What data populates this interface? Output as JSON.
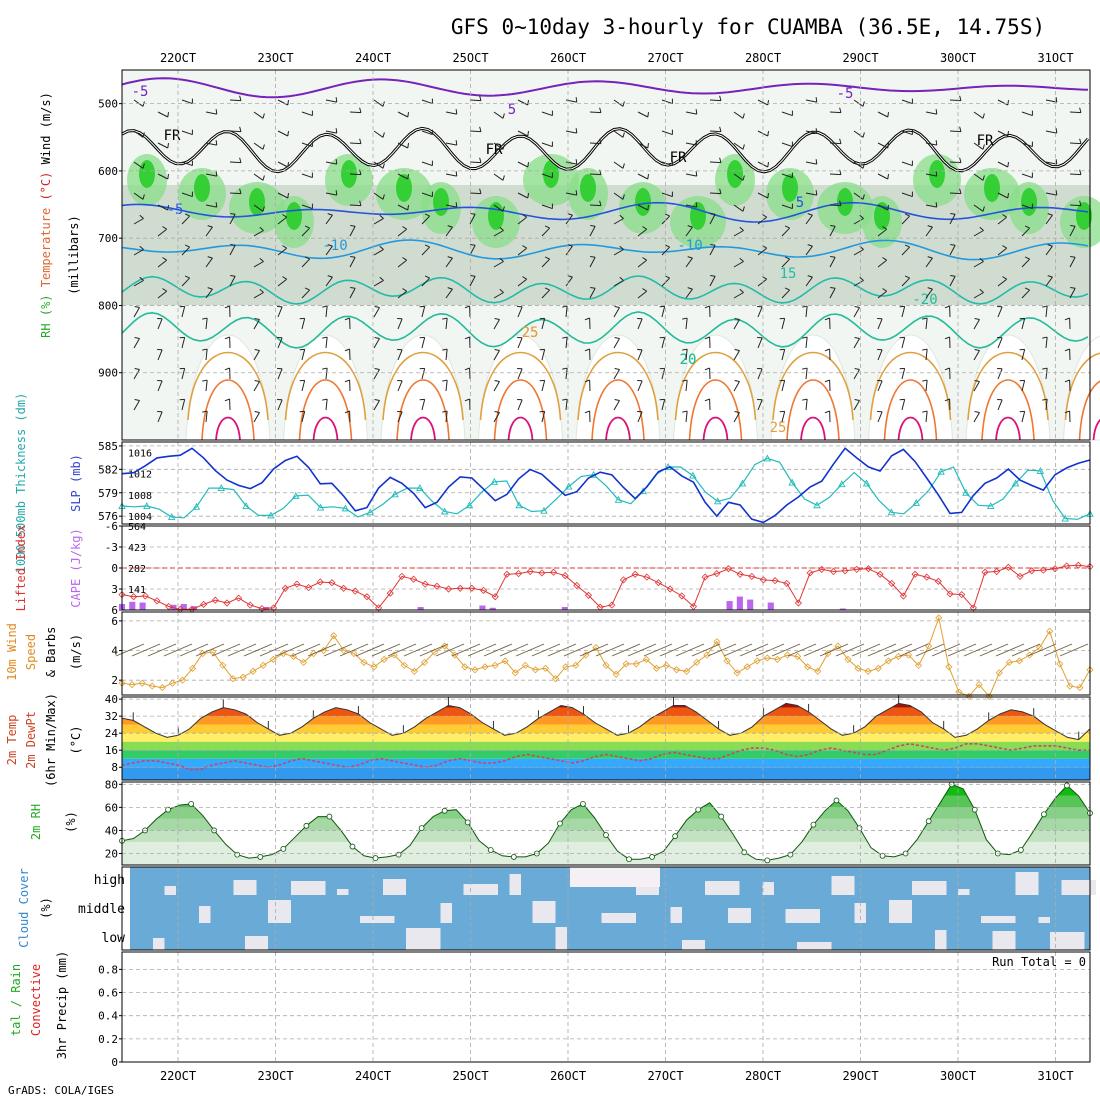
{
  "title": "GFS 0~10day 3-hourly for CUAMBA (36.5E, 14.75S)",
  "footer": "GrADS: COLA/IGES",
  "date_ticks": [
    "22OCT",
    "23OCT",
    "24OCT",
    "25OCT",
    "26OCT",
    "27OCT",
    "28OCT",
    "29OCT",
    "30OCT",
    "31OCT"
  ],
  "colors": {
    "frame": "#000000",
    "grid": "#aaaaaa",
    "rh_green": "#22cc22",
    "thick_cyan": "#22bbbb",
    "slp_blue": "#1133cc",
    "lifted_red": "#e03333",
    "cape_purple": "#bb66ee",
    "wind_orange": "#e0a030",
    "rh2m_green": "#11aa11",
    "cloud_blue": "#6aaad6"
  },
  "chart_data": [
    {
      "type": "contour",
      "panel": "upper-air",
      "ylabel_parts": [
        "RH (%)",
        "Temperature",
        "(°C)",
        "Wind",
        "(m/s)"
      ],
      "ylabel2": "(millibars)",
      "y_ticks": [
        "500",
        "600",
        "700",
        "800",
        "900"
      ],
      "y_values": [
        500,
        600,
        700,
        800,
        900
      ],
      "ylim": [
        1000,
        450
      ],
      "isotherm_labels": [
        "-5",
        "5",
        "-5",
        "FR",
        "FR",
        "FR",
        "FR",
        "5",
        "-5",
        "-10",
        "-10",
        "15",
        "-20",
        "20",
        "25",
        "25",
        "20",
        "25"
      ],
      "isotherm_levels": [
        -5,
        0,
        5,
        10,
        15,
        20,
        25,
        30
      ]
    },
    {
      "type": "line",
      "panel": "thickness-slp",
      "ylabel_left": "1000-500mb Thickness (dm)",
      "ylabel_right": "SLP (mb)",
      "y_left_ticks": [
        "576",
        "579",
        "582",
        "585"
      ],
      "y_right_ticks": [
        "1004",
        "1008",
        "1012",
        "1016"
      ],
      "y_left_lim": [
        575,
        585.5
      ],
      "y_right_lim": [
        1002.5,
        1018
      ],
      "series": [
        {
          "name": "1000-500mb Thickness (dm)",
          "axis": "left",
          "values": [
            577.3,
            577.2,
            577.3,
            576.9,
            575.9,
            575.8,
            577.2,
            579.6,
            579.6,
            579.4,
            577.3,
            576.1,
            576.1,
            577.0,
            578.6,
            578.7,
            577.1,
            577.2,
            577.0,
            575.9,
            576.5,
            577.5,
            578.8,
            579.6,
            579.6,
            577.9,
            576.6,
            576.3,
            577.4,
            579.1,
            580.4,
            580.5,
            577.4,
            576.6,
            576.7,
            578.2,
            579.8,
            581.1,
            581.3,
            579.9,
            578.1,
            577.6,
            579.2,
            581.3,
            582.3,
            582.3,
            581.2,
            579.1,
            577.9,
            578.3,
            580.2,
            582.6,
            583.4,
            582.9,
            580.3,
            578.2,
            577.4,
            578.4,
            580.1,
            581.6,
            580.2,
            578.0,
            576.5,
            576.3,
            577.7,
            579.3,
            581.7,
            582.3,
            579.0,
            577.4,
            577.3,
            578.2,
            580.2,
            581.9,
            581.8,
            578.0,
            575.7,
            575.6,
            576.3
          ]
        },
        {
          "name": "SLP (mb)",
          "axis": "right",
          "values": [
            1012.0,
            1012.2,
            1013.5,
            1015.0,
            1015.3,
            1015.5,
            1016.8,
            1015.0,
            1012.6,
            1010.8,
            1009.8,
            1009.2,
            1010.3,
            1012.9,
            1014.5,
            1015.3,
            1013.2,
            1010.1,
            1010.2,
            1007.8,
            1005.0,
            1005.6,
            1009.3,
            1011.3,
            1010.2,
            1008.3,
            1005.6,
            1006.6,
            1009.5,
            1011.4,
            1011.2,
            1009.1,
            1006.9,
            1008.1,
            1011.0,
            1012.8,
            1011.9,
            1009.9,
            1007.9,
            1008.6,
            1011.2,
            1012.3,
            1011.8,
            1009.4,
            1007.3,
            1009.5,
            1012.4,
            1013.3,
            1011.6,
            1010.4,
            1006.6,
            1004.0,
            1006.6,
            1006.1,
            1003.4,
            1002.8,
            1004.1,
            1006.1,
            1007.6,
            1009.5,
            1010.6,
            1013.8,
            1016.8,
            1015.0,
            1013.3,
            1012.5,
            1015.4,
            1016.6,
            1014.3,
            1011.2,
            1008.0,
            1004.5,
            1004.7,
            1007.9,
            1010.2,
            1011.2,
            1012.9,
            1010.8,
            1009.8,
            1008.9,
            1011.8,
            1013.1,
            1014.0,
            1014.6
          ]
        }
      ]
    },
    {
      "type": "bar-line",
      "panel": "lifted-cape",
      "ylabel_left": "Lifted Index",
      "ylabel_right": "CAPE (J/kg)",
      "y_left_ticks": [
        "-6",
        "-3",
        "0",
        "3",
        "6"
      ],
      "y_right_ticks": [
        "141",
        "282",
        "423",
        "564"
      ],
      "y_left_lim": [
        6,
        -6
      ],
      "y_right_lim": [
        0,
        564
      ],
      "series": [
        {
          "name": "Lifted Index",
          "values": [
            3.8,
            4.1,
            4.0,
            4.7,
            5.5,
            5.9,
            5.9,
            5.2,
            4.6,
            5.0,
            4.3,
            5.3,
            5.8,
            5.7,
            2.9,
            2.3,
            2.8,
            2.0,
            2.1,
            2.9,
            3.3,
            4.1,
            5.7,
            3.6,
            1.2,
            1.6,
            2.3,
            2.6,
            3.0,
            2.9,
            2.9,
            3.2,
            4.1,
            0.9,
            0.8,
            0.5,
            0.7,
            0.6,
            1.1,
            2.5,
            3.9,
            5.6,
            5.3,
            1.7,
            0.9,
            1.3,
            2.1,
            3.0,
            4.0,
            5.5,
            1.3,
            0.8,
            0.1,
            0.9,
            1.2,
            1.7,
            1.8,
            2.2,
            5.0,
            0.7,
            0.2,
            0.5,
            0.4,
            0.2,
            0.1,
            0.9,
            2.2,
            4.0,
            0.9,
            1.3,
            1.9,
            3.7,
            3.8,
            5.7,
            0.6,
            0.5,
            -0.1,
            1.2,
            0.4,
            0.3,
            0.1,
            -0.3,
            -0.4,
            -0.2
          ]
        },
        {
          "name": "CAPE (J/kg)",
          "values": [
            40,
            55,
            50,
            0,
            0,
            35,
            40,
            25,
            0,
            0,
            0,
            0,
            0,
            0,
            20,
            0,
            0,
            0,
            0,
            0,
            0,
            0,
            0,
            0,
            0,
            0,
            0,
            0,
            0,
            20,
            0,
            0,
            0,
            0,
            0,
            30,
            15,
            0,
            0,
            0,
            0,
            0,
            0,
            20,
            0,
            0,
            0,
            0,
            0,
            0,
            0,
            0,
            0,
            0,
            0,
            0,
            0,
            0,
            0,
            60,
            90,
            70,
            0,
            50,
            0,
            0,
            0,
            0,
            0,
            0,
            10,
            0,
            0,
            0,
            0,
            0,
            0,
            0,
            0,
            0,
            0,
            0,
            0,
            0,
            0,
            0,
            0,
            0,
            0,
            0,
            0,
            0,
            0,
            0,
            0
          ]
        }
      ]
    },
    {
      "type": "line",
      "panel": "wind10m",
      "ylabel": [
        "10m Wind",
        "Speed",
        "& Barbs",
        "(m/s)"
      ],
      "y_ticks": [
        "2",
        "4",
        "6"
      ],
      "ylim": [
        1,
        6.6
      ],
      "series": [
        {
          "name": "10m Wind Speed",
          "values": [
            1.8,
            1.7,
            1.8,
            1.6,
            1.5,
            1.8,
            2.0,
            2.8,
            3.8,
            3.9,
            3.0,
            2.1,
            2.2,
            2.6,
            3.0,
            3.4,
            3.8,
            3.6,
            3.2,
            3.8,
            4.0,
            5.0,
            4.0,
            3.8,
            3.2,
            2.9,
            3.4,
            3.7,
            3.0,
            2.6,
            3.2,
            3.9,
            4.3,
            3.7,
            2.9,
            2.7,
            2.9,
            3.0,
            3.3,
            2.5,
            3.0,
            2.7,
            2.8,
            2.1,
            2.9,
            3.0,
            3.7,
            4.2,
            3.0,
            2.4,
            3.1,
            3.1,
            3.4,
            2.8,
            3.0,
            2.7,
            2.6,
            3.2,
            3.7,
            4.6,
            3.3,
            2.5,
            2.9,
            3.3,
            3.5,
            3.4,
            3.7,
            3.6,
            2.9,
            2.6,
            3.8,
            4.3,
            3.4,
            2.8,
            2.6,
            2.8,
            3.3,
            3.6,
            3.7,
            3.0,
            4.3,
            6.2,
            2.9,
            1.2,
            0.9,
            1.7,
            0.9,
            2.5,
            3.2,
            3.3,
            3.7,
            4.2,
            5.3,
            3.1,
            1.6,
            1.5,
            2.7
          ]
        }
      ]
    },
    {
      "type": "area",
      "panel": "temp2m",
      "ylabel": [
        "2m Temp",
        "2m DewPt",
        "(6hr Min/Max)",
        "(°C)"
      ],
      "y_ticks": [
        "8",
        "16",
        "24",
        "32",
        "40"
      ],
      "ylim": [
        2,
        41
      ],
      "series": [
        {
          "name": "2m Temp",
          "values": [
            31,
            30,
            27,
            24,
            22,
            23,
            26,
            31,
            34,
            36,
            35,
            33,
            29,
            26,
            23,
            24,
            27,
            31,
            34,
            36,
            35,
            33,
            29,
            26,
            23,
            24,
            27,
            31,
            34,
            37,
            36,
            33,
            29,
            26,
            23,
            24,
            27,
            31,
            34,
            37,
            36,
            33,
            29,
            26,
            23,
            24,
            27,
            31,
            34,
            37,
            37,
            34,
            30,
            26,
            23,
            24,
            27,
            32,
            35,
            38,
            37,
            34,
            30,
            26,
            23,
            24,
            27,
            32,
            35,
            38,
            37,
            34,
            29,
            26,
            22,
            23,
            26,
            30,
            33,
            35,
            34,
            32,
            28,
            25,
            22,
            21,
            26
          ]
        },
        {
          "name": "2m DewPt",
          "values": [
            9,
            10,
            11,
            11,
            10,
            9,
            7,
            7,
            9,
            10,
            11,
            10,
            9,
            8,
            9,
            11,
            12,
            11,
            10,
            9,
            8,
            9,
            11,
            12,
            11,
            10,
            9,
            8,
            9,
            11,
            12,
            11,
            10,
            10,
            11,
            13,
            14,
            13,
            12,
            11,
            10,
            11,
            13,
            14,
            13,
            12,
            11,
            12,
            14,
            15,
            14,
            13,
            12,
            12,
            14,
            16,
            17,
            17,
            16,
            14,
            13,
            14,
            16,
            17,
            16,
            15,
            14,
            14,
            16,
            18,
            19,
            18,
            17,
            16,
            17,
            19,
            19,
            18,
            17,
            16,
            17,
            18,
            18,
            18,
            17,
            16,
            16
          ]
        }
      ]
    },
    {
      "type": "area",
      "panel": "rh2m",
      "ylabel": [
        "2m RH",
        "(%)"
      ],
      "y_ticks": [
        "20",
        "40",
        "60",
        "80"
      ],
      "ylim": [
        10,
        82
      ],
      "series": [
        {
          "name": "2m RH",
          "values": [
            31,
            33,
            40,
            50,
            58,
            62,
            63,
            53,
            40,
            28,
            19,
            16,
            17,
            19,
            24,
            34,
            44,
            52,
            52,
            40,
            26,
            18,
            16,
            17,
            19,
            27,
            42,
            52,
            57,
            58,
            47,
            31,
            23,
            18,
            17,
            17,
            20,
            29,
            46,
            58,
            63,
            51,
            36,
            22,
            15,
            15,
            17,
            22,
            35,
            49,
            58,
            64,
            52,
            37,
            21,
            15,
            14,
            16,
            19,
            30,
            45,
            57,
            66,
            57,
            42,
            25,
            18,
            17,
            20,
            32,
            48,
            64,
            80,
            76,
            58,
            32,
            20,
            19,
            23,
            38,
            54,
            68,
            79,
            70,
            55
          ]
        }
      ]
    },
    {
      "type": "heatmap",
      "panel": "cloud",
      "ylabel": [
        "Cloud Cover",
        "(%)"
      ],
      "rows": [
        "high",
        "middle",
        "low"
      ]
    },
    {
      "type": "bar",
      "panel": "precip",
      "ylabel_parts": [
        "tal / Rain",
        "Convective",
        "3hr Precip (mm)"
      ],
      "y_ticks": [
        "0",
        "0.2",
        "0.4",
        "0.6",
        "0.8"
      ],
      "ylim": [
        0,
        0.95
      ],
      "run_total": "Run Total = 0",
      "series": [
        {
          "name": "3hr Precip",
          "values": []
        }
      ]
    }
  ]
}
